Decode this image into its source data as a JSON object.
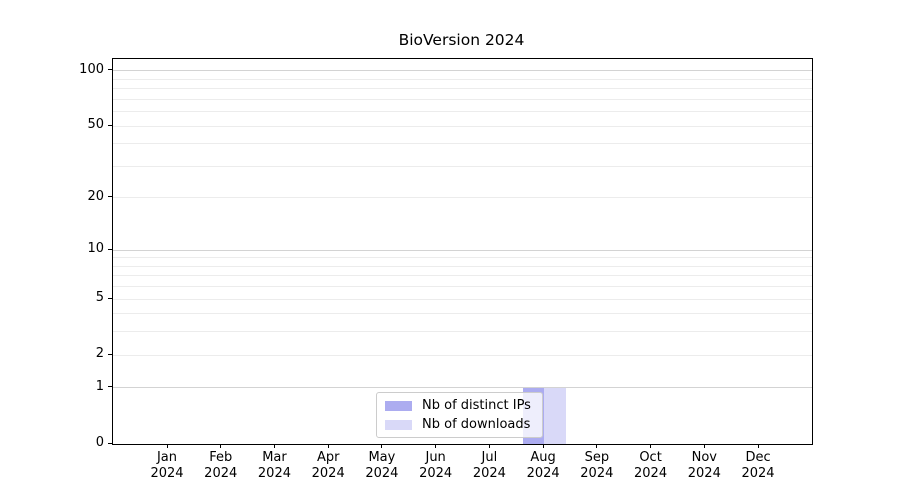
{
  "title": "BioVersion 2024",
  "chart_data": {
    "type": "bar",
    "title": "BioVersion 2024",
    "categories": [
      {
        "label": "Jan",
        "sub": "2024"
      },
      {
        "label": "Feb",
        "sub": "2024"
      },
      {
        "label": "Mar",
        "sub": "2024"
      },
      {
        "label": "Apr",
        "sub": "2024"
      },
      {
        "label": "May",
        "sub": "2024"
      },
      {
        "label": "Jun",
        "sub": "2024"
      },
      {
        "label": "Jul",
        "sub": "2024"
      },
      {
        "label": "Aug",
        "sub": "2024"
      },
      {
        "label": "Sep",
        "sub": "2024"
      },
      {
        "label": "Oct",
        "sub": "2024"
      },
      {
        "label": "Nov",
        "sub": "2024"
      },
      {
        "label": "Dec",
        "sub": "2024"
      }
    ],
    "series": [
      {
        "name": "Nb of distinct IPs",
        "color": "#acacf0",
        "values": [
          0,
          0,
          0,
          0,
          0,
          0,
          0,
          1,
          0,
          0,
          0,
          0
        ]
      },
      {
        "name": "Nb of downloads",
        "color": "#d9d9f8",
        "values": [
          0,
          0,
          0,
          0,
          0,
          0,
          0,
          1,
          0,
          0,
          0,
          0
        ]
      }
    ],
    "y_scale": "log10(1+y)",
    "y_ticks": [
      0,
      1,
      2,
      5,
      10,
      20,
      50,
      100
    ],
    "y_major_gridlines": [
      1,
      10,
      100
    ],
    "y_minor_gridlines": [
      2,
      3,
      4,
      5,
      6,
      7,
      8,
      9,
      20,
      30,
      40,
      50,
      60,
      70,
      80,
      90
    ],
    "ylim": [
      0,
      116
    ],
    "xlabel": "",
    "ylabel": "",
    "grid": true,
    "legend_position": "lower center"
  },
  "colors": {
    "grid_major": "#d3d3d3",
    "grid_minor": "#ececec",
    "spine": "#000000",
    "legend_border": "#cccccc"
  }
}
